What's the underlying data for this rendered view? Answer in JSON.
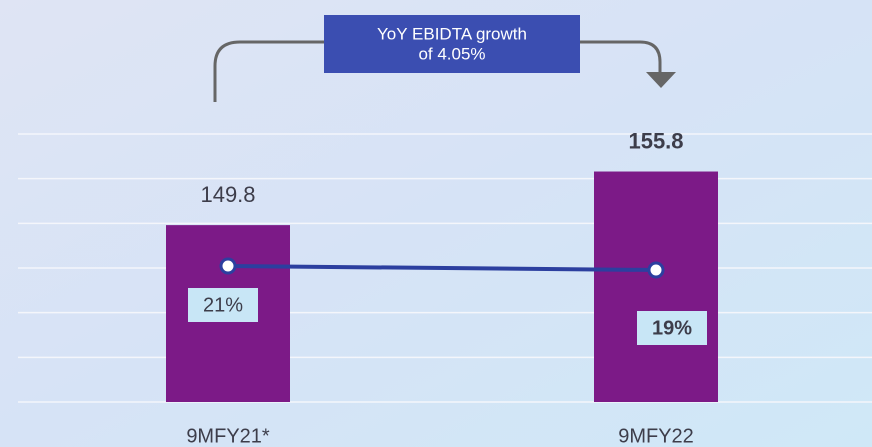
{
  "chart_data": {
    "type": "bar",
    "annotation": [
      "YoY EBIDTA growth",
      "of 4.05%"
    ],
    "categories": [
      "9MFY21*",
      "9MFY22"
    ],
    "series": [
      {
        "type": "bar",
        "color": "#7c1a87",
        "values": [
          149.8,
          155.8
        ]
      },
      {
        "type": "line",
        "axis": "y2",
        "color": "#2c3f9f",
        "values": [
          21,
          19
        ],
        "value_labels": [
          "21%",
          "19%"
        ]
      }
    ],
    "ylim": [
      130,
      160
    ],
    "yticks": [
      130,
      135,
      140,
      145,
      150,
      155,
      160
    ],
    "y2lim": [
      -47,
      87
    ],
    "grid": true
  }
}
